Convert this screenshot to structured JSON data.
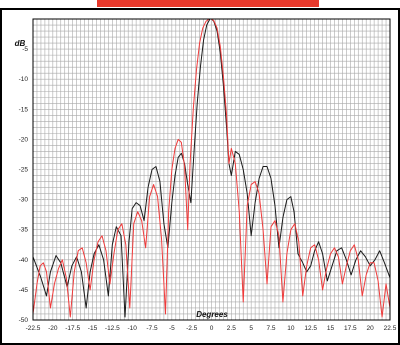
{
  "colors": {
    "banner": "#e8392c",
    "grid": "#a9a9a9",
    "border": "#000000",
    "series_black": "#1a1a1a",
    "series_red": "#ef3b3b"
  },
  "chart_data": {
    "type": "line",
    "xlabel": "Degrees",
    "ylabel": "dB",
    "xlim": [
      -22.5,
      22.5
    ],
    "ylim": [
      -50,
      0
    ],
    "x_ticks": [
      "-22.5",
      "-20",
      "-17.5",
      "-15",
      "-12.5",
      "-10",
      "-7.5",
      "-5",
      "-2.5",
      "0",
      "2.5",
      "5",
      "7.5",
      "10",
      "12.5",
      "15",
      "17.5",
      "20",
      "22.5"
    ],
    "y_ticks": [
      "-5",
      "-10",
      "-15",
      "-20",
      "-25",
      "-30",
      "-35",
      "-40",
      "-45",
      "-50"
    ],
    "grid": true,
    "series": [
      {
        "color": "black",
        "x": [
          -22.5,
          -21.5,
          -20.8,
          -20.3,
          -19.6,
          -19.0,
          -18.2,
          -17.6,
          -17.0,
          -16.4,
          -15.8,
          -15.3,
          -14.8,
          -14.2,
          -13.6,
          -13.0,
          -12.5,
          -12.0,
          -11.4,
          -10.9,
          -10.4,
          -10.0,
          -9.5,
          -9.0,
          -8.5,
          -8.0,
          -7.5,
          -7.0,
          -6.5,
          -6.0,
          -5.5,
          -5.0,
          -4.6,
          -4.2,
          -3.8,
          -3.4,
          -3.0,
          -2.6,
          -2.2,
          -1.8,
          -1.4,
          -1.0,
          -0.6,
          -0.2,
          0.0,
          0.3,
          0.7,
          1.1,
          1.5,
          1.9,
          2.2,
          2.5,
          3.0,
          3.5,
          4.0,
          4.5,
          5.0,
          5.5,
          6.0,
          6.5,
          7.0,
          7.5,
          8.0,
          8.5,
          9.0,
          9.5,
          10.0,
          10.4,
          10.9,
          11.5,
          12.0,
          12.5,
          13.0,
          13.5,
          14.0,
          14.6,
          15.2,
          15.8,
          16.4,
          17.0,
          17.6,
          18.2,
          18.8,
          19.4,
          20.0,
          20.6,
          21.2,
          21.8,
          22.5
        ],
        "y": [
          -39.5,
          -43.0,
          -46.0,
          -42.0,
          -39.3,
          -40.5,
          -44.5,
          -41.0,
          -39.5,
          -42.0,
          -48.0,
          -42.0,
          -39.0,
          -37.5,
          -40.0,
          -46.0,
          -37.5,
          -34.5,
          -36.0,
          -49.5,
          -37.0,
          -31.5,
          -30.5,
          -31.0,
          -33.5,
          -28.0,
          -25.0,
          -24.5,
          -27.0,
          -34.0,
          -38.0,
          -30.5,
          -26.0,
          -23.0,
          -22.3,
          -24.0,
          -27.5,
          -30.5,
          -22.0,
          -14.0,
          -8.0,
          -3.5,
          -1.0,
          0.0,
          0.0,
          -0.4,
          -2.0,
          -5.5,
          -11.0,
          -18.0,
          -24.0,
          -26.0,
          -22.0,
          -22.5,
          -25.0,
          -29.0,
          -36.0,
          -30.5,
          -26.5,
          -24.5,
          -24.5,
          -26.5,
          -31.0,
          -38.0,
          -33.0,
          -30.0,
          -29.5,
          -32.0,
          -39.0,
          -40.5,
          -42.0,
          -41.0,
          -38.5,
          -37.0,
          -39.0,
          -43.5,
          -41.0,
          -38.5,
          -38.0,
          -40.0,
          -42.5,
          -40.0,
          -38.5,
          -39.5,
          -41.0,
          -40.0,
          -38.5,
          -40.5,
          -43.0
        ]
      },
      {
        "color": "red",
        "x": [
          -22.5,
          -22.0,
          -21.6,
          -21.2,
          -20.8,
          -20.3,
          -19.8,
          -19.3,
          -18.8,
          -18.3,
          -17.8,
          -17.3,
          -16.8,
          -16.3,
          -15.8,
          -15.3,
          -14.8,
          -14.3,
          -13.8,
          -13.3,
          -12.8,
          -12.3,
          -11.8,
          -11.3,
          -10.8,
          -10.3,
          -9.8,
          -9.3,
          -8.8,
          -8.3,
          -7.8,
          -7.3,
          -6.8,
          -6.3,
          -5.8,
          -5.4,
          -5.0,
          -4.6,
          -4.2,
          -3.8,
          -3.4,
          -3.0,
          -2.7,
          -2.3,
          -1.9,
          -1.5,
          -1.1,
          -0.7,
          -0.3,
          0.0,
          0.3,
          0.7,
          1.1,
          1.5,
          1.9,
          2.2,
          2.5,
          3.0,
          3.5,
          4.0,
          4.5,
          5.0,
          5.5,
          6.0,
          6.5,
          7.0,
          7.5,
          8.0,
          8.5,
          9.0,
          9.5,
          10.0,
          10.5,
          11.0,
          11.5,
          12.0,
          12.5,
          13.0,
          13.5,
          14.0,
          14.5,
          15.0,
          15.5,
          16.0,
          16.5,
          17.0,
          17.5,
          18.0,
          18.5,
          19.0,
          19.5,
          20.0,
          20.5,
          21.0,
          21.5,
          22.0,
          22.5
        ],
        "y": [
          -49.0,
          -44.0,
          -41.0,
          -40.5,
          -42.0,
          -48.0,
          -44.0,
          -41.5,
          -40.0,
          -43.0,
          -49.5,
          -42.0,
          -38.5,
          -38.0,
          -40.5,
          -45.0,
          -40.0,
          -37.0,
          -36.0,
          -38.5,
          -44.0,
          -39.0,
          -35.0,
          -34.0,
          -37.5,
          -48.0,
          -34.0,
          -32.0,
          -33.5,
          -38.0,
          -29.5,
          -27.5,
          -29.5,
          -36.5,
          -49.0,
          -32.0,
          -25.0,
          -21.5,
          -20.0,
          -20.5,
          -24.5,
          -35.0,
          -24.0,
          -15.0,
          -8.5,
          -4.0,
          -1.5,
          -0.4,
          0.0,
          0.0,
          -0.3,
          -1.5,
          -4.5,
          -9.5,
          -16.0,
          -24.0,
          -21.5,
          -24.0,
          -32.0,
          -47.0,
          -31.0,
          -27.5,
          -27.0,
          -29.0,
          -35.0,
          -44.0,
          -34.5,
          -33.5,
          -36.0,
          -47.0,
          -39.0,
          -35.0,
          -34.0,
          -37.0,
          -46.0,
          -41.0,
          -38.0,
          -37.5,
          -40.0,
          -45.0,
          -41.5,
          -39.0,
          -38.0,
          -39.5,
          -44.0,
          -41.0,
          -38.5,
          -37.5,
          -40.0,
          -46.0,
          -42.5,
          -40.5,
          -40.5,
          -43.5,
          -49.5,
          -44.0,
          -48.0
        ]
      }
    ]
  }
}
